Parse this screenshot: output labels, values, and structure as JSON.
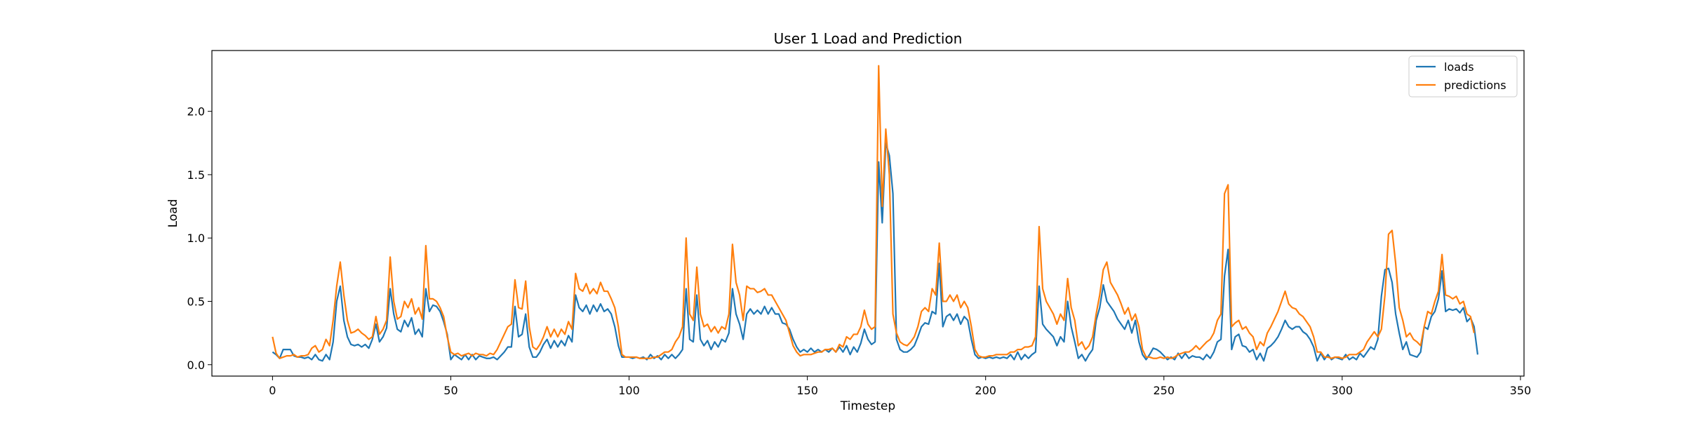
{
  "chart_data": {
    "type": "line",
    "title": "User 1 Load and Prediction",
    "xlabel": "Timestep",
    "ylabel": "Load",
    "xlim": [
      -17,
      351
    ],
    "ylim": [
      -0.09,
      2.48
    ],
    "xticks": [
      0,
      50,
      100,
      150,
      200,
      250,
      300,
      350
    ],
    "yticks": [
      0.0,
      0.5,
      1.0,
      1.5,
      2.0
    ],
    "grid": false,
    "legend": "top-right",
    "x_start": 0,
    "series": [
      {
        "name": "loads",
        "color": "#1f77b4",
        "values": [
          0.1,
          0.08,
          0.05,
          0.12,
          0.12,
          0.12,
          0.07,
          0.06,
          0.06,
          0.05,
          0.06,
          0.04,
          0.08,
          0.04,
          0.03,
          0.08,
          0.04,
          0.18,
          0.5,
          0.62,
          0.35,
          0.22,
          0.16,
          0.15,
          0.16,
          0.14,
          0.16,
          0.13,
          0.2,
          0.32,
          0.18,
          0.22,
          0.29,
          0.6,
          0.4,
          0.28,
          0.26,
          0.35,
          0.3,
          0.37,
          0.24,
          0.28,
          0.22,
          0.6,
          0.42,
          0.47,
          0.46,
          0.42,
          0.34,
          0.24,
          0.04,
          0.08,
          0.06,
          0.04,
          0.08,
          0.04,
          0.08,
          0.04,
          0.07,
          0.06,
          0.05,
          0.05,
          0.06,
          0.04,
          0.07,
          0.1,
          0.14,
          0.14,
          0.46,
          0.22,
          0.24,
          0.4,
          0.14,
          0.06,
          0.06,
          0.1,
          0.16,
          0.2,
          0.13,
          0.19,
          0.14,
          0.19,
          0.15,
          0.23,
          0.18,
          0.55,
          0.45,
          0.42,
          0.47,
          0.4,
          0.47,
          0.42,
          0.48,
          0.42,
          0.44,
          0.4,
          0.3,
          0.15,
          0.06,
          0.06,
          0.06,
          0.05,
          0.06,
          0.05,
          0.06,
          0.04,
          0.08,
          0.05,
          0.07,
          0.04,
          0.08,
          0.05,
          0.08,
          0.05,
          0.08,
          0.12,
          0.6,
          0.2,
          0.18,
          0.55,
          0.2,
          0.15,
          0.19,
          0.12,
          0.18,
          0.14,
          0.2,
          0.18,
          0.25,
          0.6,
          0.4,
          0.32,
          0.2,
          0.4,
          0.44,
          0.4,
          0.43,
          0.4,
          0.46,
          0.4,
          0.45,
          0.4,
          0.4,
          0.33,
          0.32,
          0.28,
          0.2,
          0.14,
          0.1,
          0.12,
          0.1,
          0.13,
          0.1,
          0.12,
          0.1,
          0.12,
          0.1,
          0.13,
          0.1,
          0.14,
          0.1,
          0.15,
          0.08,
          0.14,
          0.1,
          0.17,
          0.28,
          0.2,
          0.16,
          0.18,
          1.6,
          1.12,
          1.75,
          1.65,
          1.35,
          0.2,
          0.12,
          0.1,
          0.1,
          0.12,
          0.15,
          0.22,
          0.3,
          0.33,
          0.32,
          0.42,
          0.4,
          0.8,
          0.3,
          0.38,
          0.4,
          0.35,
          0.4,
          0.32,
          0.38,
          0.35,
          0.2,
          0.08,
          0.05,
          0.06,
          0.05,
          0.06,
          0.05,
          0.06,
          0.05,
          0.06,
          0.05,
          0.08,
          0.04,
          0.1,
          0.04,
          0.08,
          0.05,
          0.08,
          0.1,
          0.62,
          0.32,
          0.28,
          0.25,
          0.22,
          0.15,
          0.22,
          0.18,
          0.5,
          0.3,
          0.18,
          0.05,
          0.08,
          0.03,
          0.08,
          0.12,
          0.35,
          0.45,
          0.63,
          0.5,
          0.46,
          0.42,
          0.36,
          0.32,
          0.28,
          0.35,
          0.25,
          0.35,
          0.18,
          0.08,
          0.04,
          0.08,
          0.13,
          0.12,
          0.1,
          0.07,
          0.04,
          0.06,
          0.04,
          0.09,
          0.05,
          0.09,
          0.05,
          0.07,
          0.06,
          0.06,
          0.04,
          0.08,
          0.05,
          0.1,
          0.18,
          0.2,
          0.7,
          0.91,
          0.12,
          0.22,
          0.24,
          0.15,
          0.14,
          0.1,
          0.12,
          0.04,
          0.09,
          0.03,
          0.13,
          0.15,
          0.18,
          0.22,
          0.28,
          0.35,
          0.3,
          0.28,
          0.3,
          0.3,
          0.26,
          0.24,
          0.2,
          0.14,
          0.03,
          0.09,
          0.04,
          0.08,
          0.04,
          0.06,
          0.05,
          0.04,
          0.08,
          0.04,
          0.06,
          0.04,
          0.09,
          0.06,
          0.1,
          0.14,
          0.12,
          0.2,
          0.54,
          0.75,
          0.76,
          0.65,
          0.4,
          0.25,
          0.12,
          0.18,
          0.08,
          0.07,
          0.06,
          0.1,
          0.3,
          0.28,
          0.38,
          0.42,
          0.52,
          0.74,
          0.42,
          0.44,
          0.43,
          0.44,
          0.41,
          0.45,
          0.34,
          0.37,
          0.3,
          0.08
        ]
      },
      {
        "name": "predictions",
        "color": "#ff7f0e",
        "values": [
          0.22,
          0.09,
          0.05,
          0.06,
          0.07,
          0.07,
          0.08,
          0.06,
          0.07,
          0.07,
          0.08,
          0.13,
          0.15,
          0.1,
          0.12,
          0.2,
          0.15,
          0.35,
          0.62,
          0.81,
          0.55,
          0.35,
          0.25,
          0.26,
          0.28,
          0.25,
          0.23,
          0.2,
          0.22,
          0.38,
          0.24,
          0.28,
          0.35,
          0.85,
          0.5,
          0.36,
          0.38,
          0.5,
          0.45,
          0.52,
          0.4,
          0.45,
          0.36,
          0.94,
          0.52,
          0.52,
          0.5,
          0.45,
          0.38,
          0.22,
          0.1,
          0.08,
          0.09,
          0.07,
          0.08,
          0.09,
          0.07,
          0.09,
          0.08,
          0.08,
          0.07,
          0.09,
          0.08,
          0.12,
          0.18,
          0.24,
          0.3,
          0.32,
          0.67,
          0.45,
          0.44,
          0.66,
          0.3,
          0.14,
          0.12,
          0.16,
          0.22,
          0.3,
          0.22,
          0.28,
          0.22,
          0.28,
          0.24,
          0.34,
          0.28,
          0.72,
          0.6,
          0.58,
          0.64,
          0.56,
          0.6,
          0.56,
          0.65,
          0.58,
          0.58,
          0.52,
          0.45,
          0.3,
          0.08,
          0.06,
          0.06,
          0.06,
          0.06,
          0.05,
          0.05,
          0.05,
          0.05,
          0.06,
          0.06,
          0.08,
          0.1,
          0.1,
          0.12,
          0.18,
          0.22,
          0.3,
          1.0,
          0.4,
          0.35,
          0.77,
          0.4,
          0.3,
          0.32,
          0.26,
          0.3,
          0.25,
          0.3,
          0.28,
          0.4,
          0.95,
          0.65,
          0.55,
          0.35,
          0.62,
          0.6,
          0.6,
          0.57,
          0.58,
          0.6,
          0.55,
          0.55,
          0.5,
          0.45,
          0.4,
          0.35,
          0.25,
          0.15,
          0.1,
          0.07,
          0.08,
          0.08,
          0.08,
          0.09,
          0.1,
          0.1,
          0.12,
          0.12,
          0.13,
          0.1,
          0.16,
          0.14,
          0.22,
          0.2,
          0.24,
          0.24,
          0.3,
          0.43,
          0.32,
          0.28,
          0.3,
          2.36,
          1.25,
          1.86,
          1.5,
          0.4,
          0.25,
          0.18,
          0.16,
          0.15,
          0.18,
          0.22,
          0.3,
          0.42,
          0.45,
          0.42,
          0.6,
          0.55,
          0.96,
          0.5,
          0.5,
          0.55,
          0.5,
          0.55,
          0.45,
          0.5,
          0.45,
          0.3,
          0.12,
          0.07,
          0.06,
          0.06,
          0.07,
          0.07,
          0.08,
          0.08,
          0.08,
          0.08,
          0.1,
          0.1,
          0.12,
          0.12,
          0.14,
          0.14,
          0.15,
          0.22,
          1.09,
          0.6,
          0.5,
          0.45,
          0.4,
          0.32,
          0.4,
          0.35,
          0.68,
          0.45,
          0.35,
          0.15,
          0.18,
          0.12,
          0.15,
          0.22,
          0.4,
          0.55,
          0.75,
          0.81,
          0.65,
          0.6,
          0.55,
          0.48,
          0.4,
          0.45,
          0.35,
          0.4,
          0.3,
          0.12,
          0.06,
          0.06,
          0.05,
          0.05,
          0.06,
          0.05,
          0.06,
          0.05,
          0.06,
          0.08,
          0.09,
          0.1,
          0.1,
          0.12,
          0.15,
          0.12,
          0.15,
          0.18,
          0.2,
          0.25,
          0.35,
          0.4,
          1.35,
          1.42,
          0.3,
          0.33,
          0.35,
          0.28,
          0.3,
          0.25,
          0.22,
          0.12,
          0.18,
          0.15,
          0.25,
          0.3,
          0.36,
          0.42,
          0.5,
          0.58,
          0.48,
          0.45,
          0.44,
          0.4,
          0.38,
          0.34,
          0.3,
          0.22,
          0.1,
          0.1,
          0.06,
          0.06,
          0.05,
          0.06,
          0.06,
          0.05,
          0.06,
          0.08,
          0.08,
          0.08,
          0.1,
          0.12,
          0.18,
          0.22,
          0.26,
          0.22,
          0.28,
          0.55,
          1.03,
          1.06,
          0.8,
          0.45,
          0.35,
          0.22,
          0.25,
          0.2,
          0.18,
          0.15,
          0.3,
          0.42,
          0.4,
          0.5,
          0.58,
          0.87,
          0.55,
          0.54,
          0.52,
          0.54,
          0.48,
          0.5,
          0.4,
          0.38,
          0.25
        ]
      }
    ]
  }
}
